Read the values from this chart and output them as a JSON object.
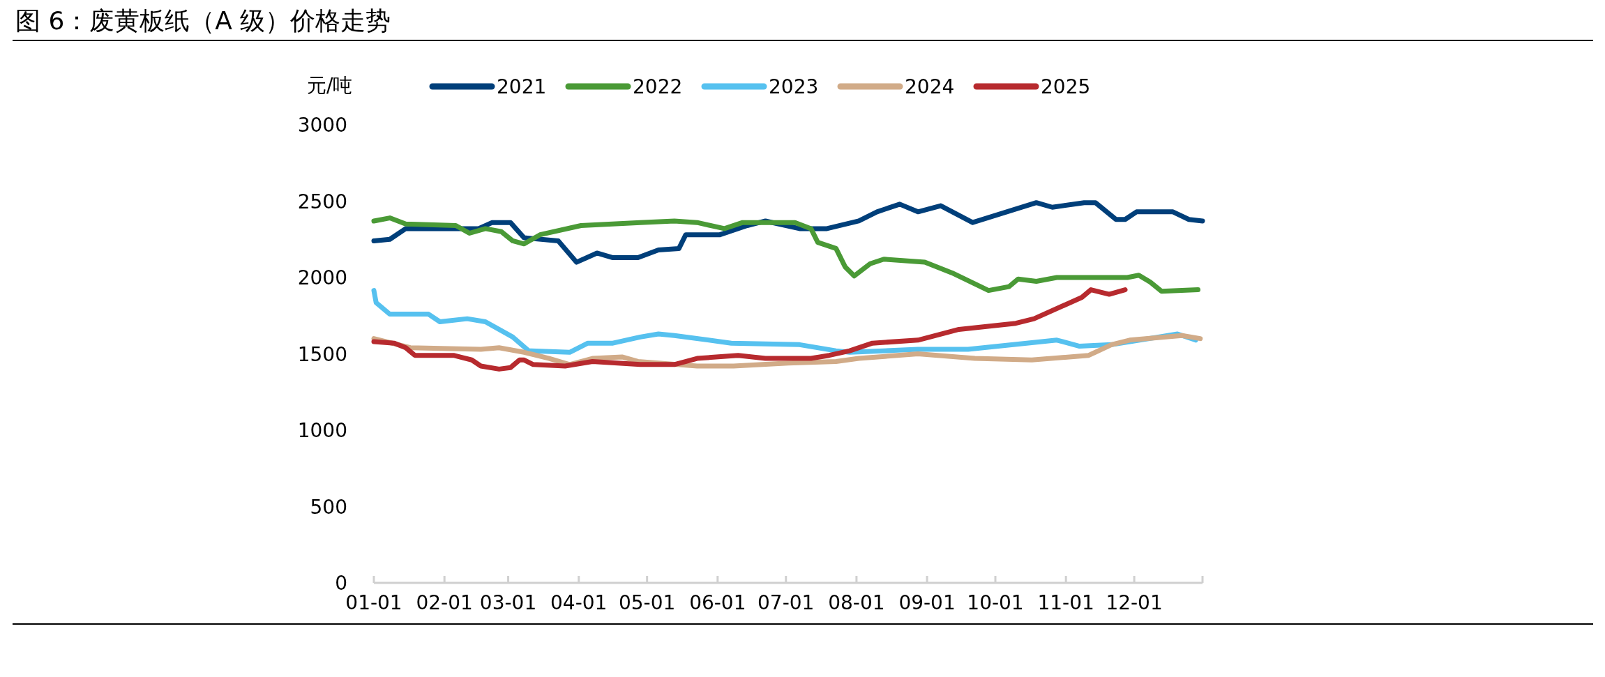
{
  "chart_data": {
    "type": "line",
    "title": "图 6：废黄板纸（A 级）价格走势",
    "ylabel": "元/吨",
    "legend": "top",
    "xlim": [
      "--01-01",
      "--12-31"
    ],
    "xticks": [
      {
        "value": "--01-01",
        "label": "01-01"
      },
      {
        "value": "--02-01",
        "label": "02-01"
      },
      {
        "value": "--03-01",
        "label": "03-01"
      },
      {
        "value": "--04-01",
        "label": "04-01"
      },
      {
        "value": "--05-01",
        "label": "05-01"
      },
      {
        "value": "--06-01",
        "label": "06-01"
      },
      {
        "value": "--07-01",
        "label": "07-01"
      },
      {
        "value": "--08-01",
        "label": "08-01"
      },
      {
        "value": "--09-01",
        "label": "09-01"
      },
      {
        "value": "--10-01",
        "label": "10-01"
      },
      {
        "value": "--11-01",
        "label": "11-01"
      },
      {
        "value": "--12-01",
        "label": "12-01"
      }
    ],
    "ylim": [
      0,
      3000
    ],
    "yticks": [
      0,
      500,
      1000,
      1500,
      2000,
      2500,
      3000
    ],
    "series": [
      {
        "name": "2021",
        "color": "#003f7a",
        "x": [
          "--01-01",
          "--01-08",
          "--01-15",
          "--02-16",
          "--02-22",
          "--03-02",
          "--03-08",
          "--03-23",
          "--03-31",
          "--04-09",
          "--04-16",
          "--04-27",
          "--05-06",
          "--05-15",
          "--05-18",
          "--06-02",
          "--06-14",
          "--06-22",
          "--07-07",
          "--07-19",
          "--08-02",
          "--08-10",
          "--08-20",
          "--08-28",
          "--09-07",
          "--09-21",
          "--10-19",
          "--10-26",
          "--11-09",
          "--11-14",
          "--11-23",
          "--11-27",
          "--12-02",
          "--12-18",
          "--12-25",
          "--12-31"
        ],
        "values": [
          2240,
          2250,
          2320,
          2320,
          2360,
          2360,
          2260,
          2240,
          2100,
          2160,
          2130,
          2130,
          2180,
          2190,
          2280,
          2280,
          2340,
          2370,
          2320,
          2320,
          2370,
          2430,
          2480,
          2430,
          2470,
          2360,
          2490,
          2460,
          2490,
          2490,
          2380,
          2380,
          2430,
          2430,
          2380,
          2370
        ]
      },
      {
        "name": "2022",
        "color": "#4a9a36",
        "x": [
          "--01-01",
          "--01-08",
          "--01-15",
          "--02-06",
          "--02-12",
          "--02-19",
          "--02-26",
          "--03-03",
          "--03-08",
          "--03-15",
          "--04-02",
          "--04-28",
          "--05-13",
          "--05-23",
          "--06-04",
          "--06-12",
          "--07-05",
          "--07-12",
          "--07-15",
          "--07-23",
          "--07-27",
          "--07-31",
          "--08-07",
          "--08-13",
          "--08-31",
          "--09-12",
          "--09-28",
          "--10-07",
          "--10-11",
          "--10-19",
          "--10-28",
          "--11-28",
          "--12-03",
          "--12-08",
          "--12-13",
          "--12-29"
        ],
        "values": [
          2370,
          2390,
          2350,
          2340,
          2290,
          2320,
          2300,
          2240,
          2220,
          2280,
          2340,
          2360,
          2370,
          2360,
          2320,
          2360,
          2360,
          2320,
          2230,
          2190,
          2070,
          2010,
          2090,
          2120,
          2100,
          2030,
          1915,
          1940,
          1990,
          1975,
          2000,
          2000,
          2015,
          1970,
          1910,
          1920
        ]
      },
      {
        "name": "2023",
        "color": "#56c1ef",
        "x": [
          "--01-01",
          "--01-02",
          "--01-08",
          "--01-25",
          "--01-30",
          "--02-11",
          "--02-19",
          "--03-03",
          "--03-10",
          "--03-28",
          "--04-05",
          "--04-16",
          "--04-28",
          "--05-06",
          "--05-13",
          "--06-07",
          "--07-07",
          "--07-23",
          "--07-29",
          "--08-28",
          "--09-19",
          "--10-28",
          "--11-07",
          "--11-21",
          "--12-20",
          "--12-28"
        ],
        "values": [
          1915,
          1835,
          1760,
          1760,
          1710,
          1730,
          1710,
          1610,
          1520,
          1510,
          1570,
          1570,
          1610,
          1630,
          1620,
          1570,
          1560,
          1520,
          1510,
          1530,
          1530,
          1590,
          1550,
          1560,
          1630,
          1590
        ]
      },
      {
        "name": "2024",
        "color": "#d1ab88",
        "x": [
          "--01-01",
          "--01-17",
          "--02-17",
          "--02-25",
          "--03-08",
          "--03-19",
          "--03-28",
          "--04-07",
          "--04-20",
          "--04-27",
          "--05-23",
          "--06-08",
          "--07-02",
          "--07-23",
          "--08-02",
          "--08-28",
          "--09-22",
          "--10-17",
          "--11-11",
          "--11-21",
          "--11-29",
          "--12-22",
          "--12-30"
        ],
        "values": [
          1600,
          1540,
          1530,
          1540,
          1510,
          1470,
          1430,
          1470,
          1480,
          1450,
          1420,
          1420,
          1440,
          1450,
          1470,
          1500,
          1470,
          1460,
          1490,
          1560,
          1590,
          1620,
          1600
        ]
      },
      {
        "name": "2025",
        "color": "#b72a2e",
        "x": [
          "--01-01",
          "--01-10",
          "--01-15",
          "--01-19",
          "--02-05",
          "--02-13",
          "--02-17",
          "--02-25",
          "--03-02",
          "--03-06",
          "--03-08",
          "--03-12",
          "--03-26",
          "--04-07",
          "--04-28",
          "--05-13",
          "--05-23",
          "--06-10",
          "--06-22",
          "--07-12",
          "--07-20",
          "--07-29",
          "--08-08",
          "--08-28",
          "--09-15",
          "--10-10",
          "--10-18",
          "--11-08",
          "--11-12",
          "--11-20",
          "--11-27"
        ],
        "values": [
          1580,
          1570,
          1540,
          1490,
          1490,
          1460,
          1420,
          1400,
          1410,
          1460,
          1460,
          1430,
          1420,
          1450,
          1430,
          1430,
          1470,
          1490,
          1470,
          1470,
          1490,
          1520,
          1570,
          1590,
          1660,
          1700,
          1730,
          1870,
          1920,
          1890,
          1920
        ]
      }
    ]
  }
}
